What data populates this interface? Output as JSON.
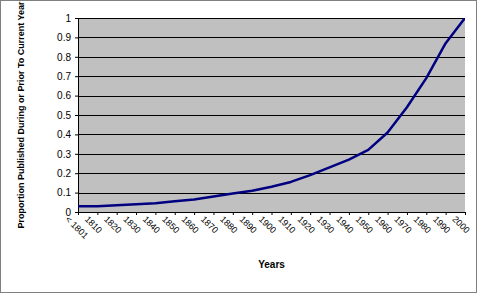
{
  "chart_data": {
    "type": "line",
    "x_label": "Years",
    "y_label": "Proportion Published During or Prior To Current Year",
    "categories": [
      "< 1801",
      "1810",
      "1820",
      "1830",
      "1840",
      "1850",
      "1860",
      "1870",
      "1880",
      "1890",
      "1900",
      "1910",
      "1920",
      "1930",
      "1940",
      "1950",
      "1960",
      "1970",
      "1980",
      "1990",
      "2000"
    ],
    "values": [
      0.03,
      0.03,
      0.035,
      0.04,
      0.045,
      0.055,
      0.065,
      0.08,
      0.095,
      0.11,
      0.13,
      0.155,
      0.19,
      0.23,
      0.27,
      0.32,
      0.41,
      0.54,
      0.69,
      0.87,
      1.0
    ],
    "color": "#000080",
    "ylim": [
      0,
      1
    ],
    "yticks": [
      0,
      0.1,
      0.2,
      0.3,
      0.4,
      0.5,
      0.6,
      0.7,
      0.8,
      0.9,
      1
    ],
    "grid": true
  }
}
